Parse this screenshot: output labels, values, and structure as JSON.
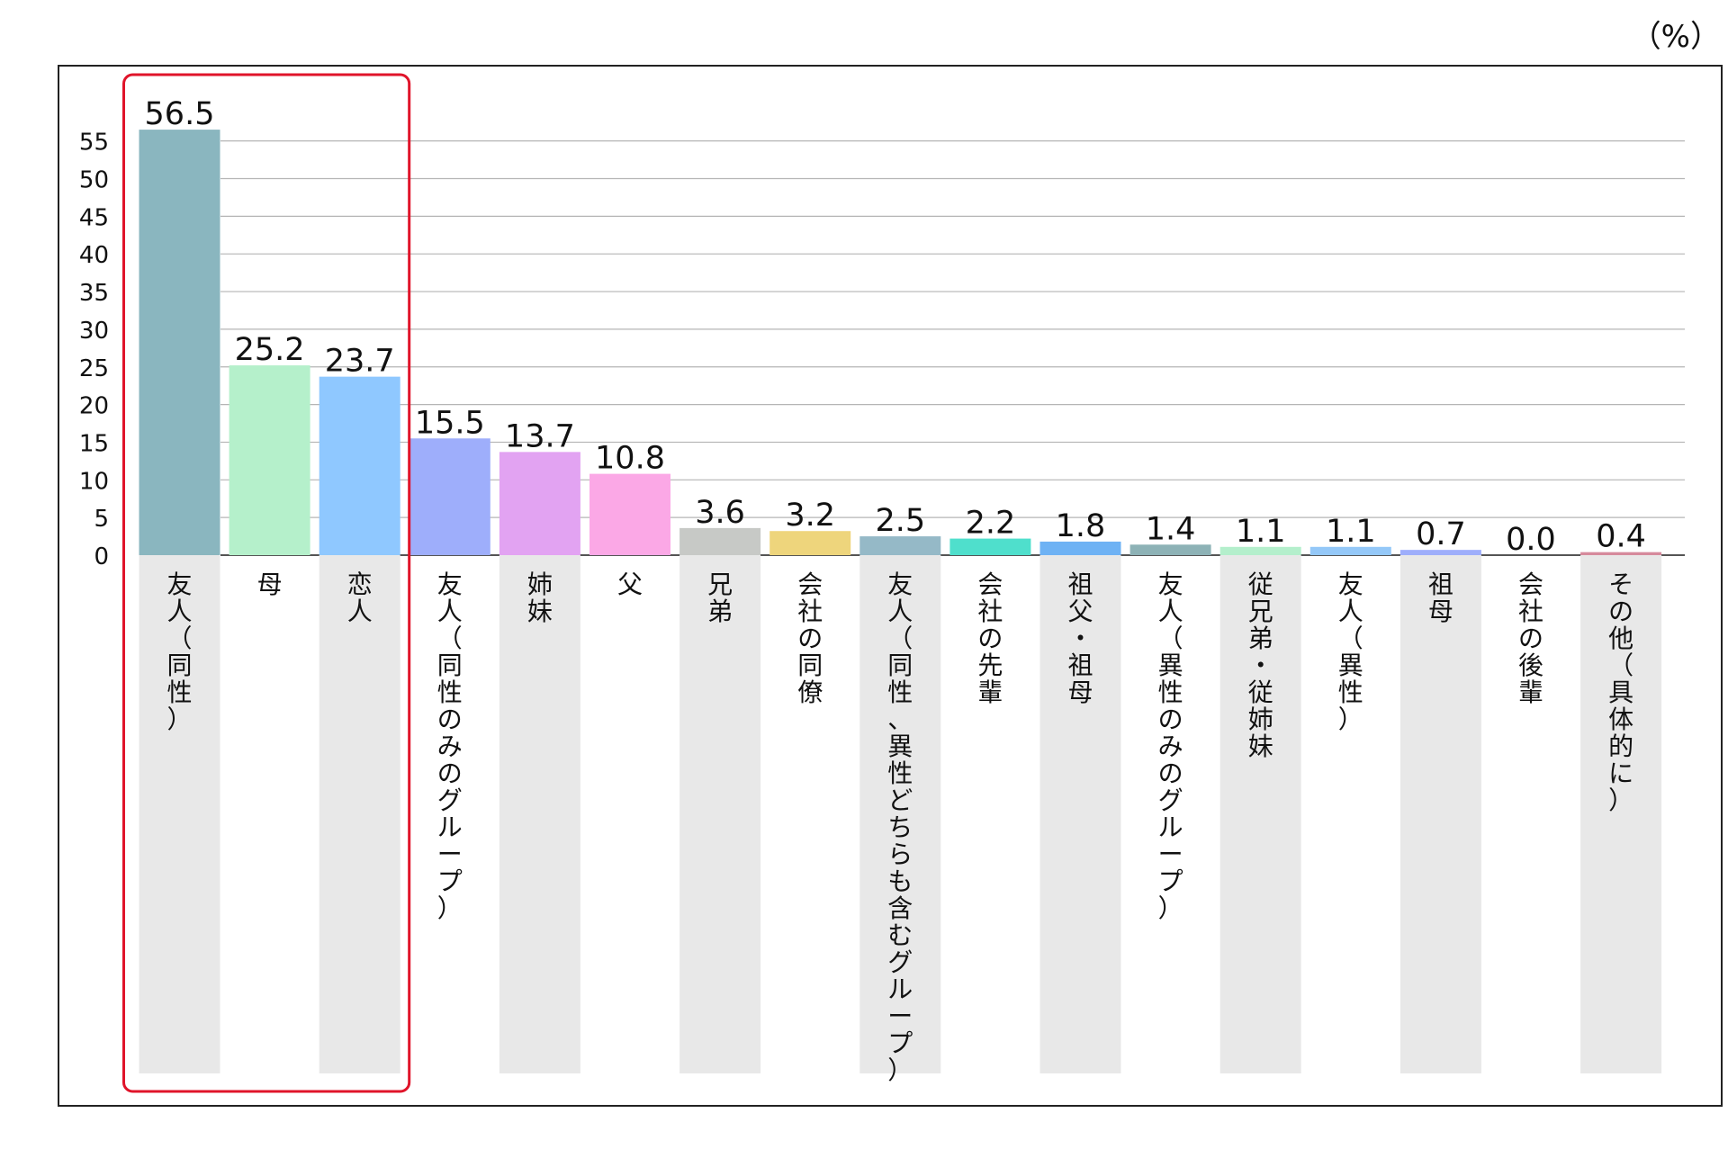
{
  "unit_label": "（%）",
  "chart_data": {
    "type": "bar",
    "title": "",
    "xlabel": "",
    "ylabel": "",
    "ylim": [
      0,
      55
    ],
    "yticks": [
      0,
      5,
      10,
      15,
      20,
      25,
      30,
      35,
      40,
      45,
      50,
      55
    ],
    "grid": true,
    "categories": [
      "友人（同性）",
      "母",
      "恋人",
      "友人（同性のみのグループ）",
      "姉妹",
      "父",
      "兄弟",
      "会社の同僚",
      "友人（同性、異性どちらも含むグループ）",
      "会社の先輩",
      "祖父・祖母",
      "友人（異性のみのグループ）",
      "従兄弟・従姉妹",
      "友人（異性）",
      "祖母",
      "会社の後輩",
      "その他（具体的に）"
    ],
    "values": [
      56.5,
      25.2,
      23.7,
      15.5,
      13.7,
      10.8,
      3.6,
      3.2,
      2.5,
      2.2,
      1.8,
      1.4,
      1.1,
      1.1,
      0.7,
      0.0,
      0.4
    ],
    "value_labels": [
      "56.5",
      "25.2",
      "23.7",
      "15.5",
      "13.7",
      "10.8",
      "3.6",
      "3.2",
      "2.5",
      "2.2",
      "1.8",
      "1.4",
      "1.1",
      "1.1",
      "0.7",
      "0.0",
      "0.4"
    ],
    "colors": [
      "#8ab6bf",
      "#b5f0cb",
      "#8fc8ff",
      "#9eaefb",
      "#e2a3f2",
      "#fba8e6",
      "#c7c9c6",
      "#eed57c",
      "#95b9c7",
      "#4fdfcc",
      "#6eb2f4",
      "#8db2b6",
      "#b4efcc",
      "#94c8f8",
      "#9eaefb",
      "#e2a3f2",
      "#d68a9c"
    ],
    "highlight": {
      "from": 0,
      "to": 2,
      "color": "#e0142a"
    },
    "label_band_color": "#e8e8e8"
  }
}
